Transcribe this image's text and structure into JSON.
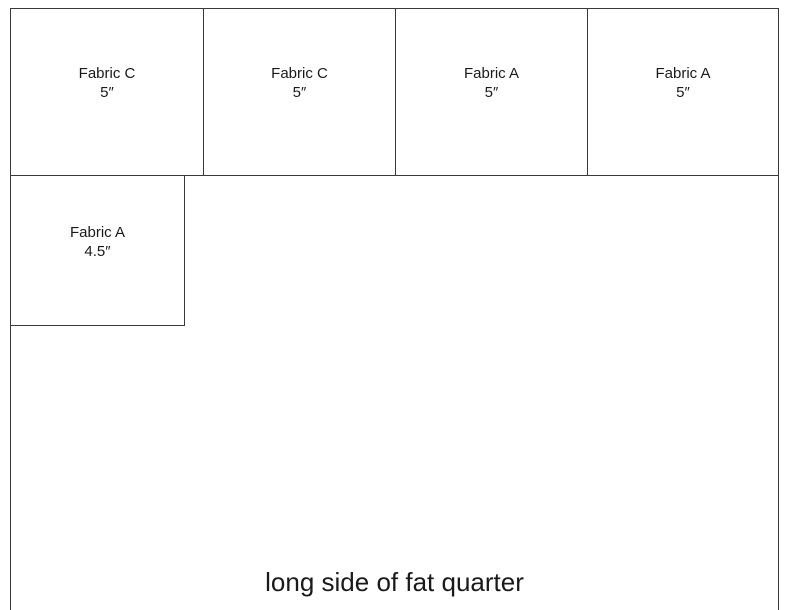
{
  "squares": [
    {
      "fabric": "Fabric C",
      "size": "5″"
    },
    {
      "fabric": "Fabric C",
      "size": "5″"
    },
    {
      "fabric": "Fabric A",
      "size": "5″"
    },
    {
      "fabric": "Fabric A",
      "size": "5″"
    },
    {
      "fabric": "Fabric A",
      "size": "4.5″"
    }
  ],
  "footer_label": "long side of fat quarter",
  "colors": {
    "line": "#3a3a3a",
    "text": "#1a1a1a",
    "background": "#ffffff"
  }
}
